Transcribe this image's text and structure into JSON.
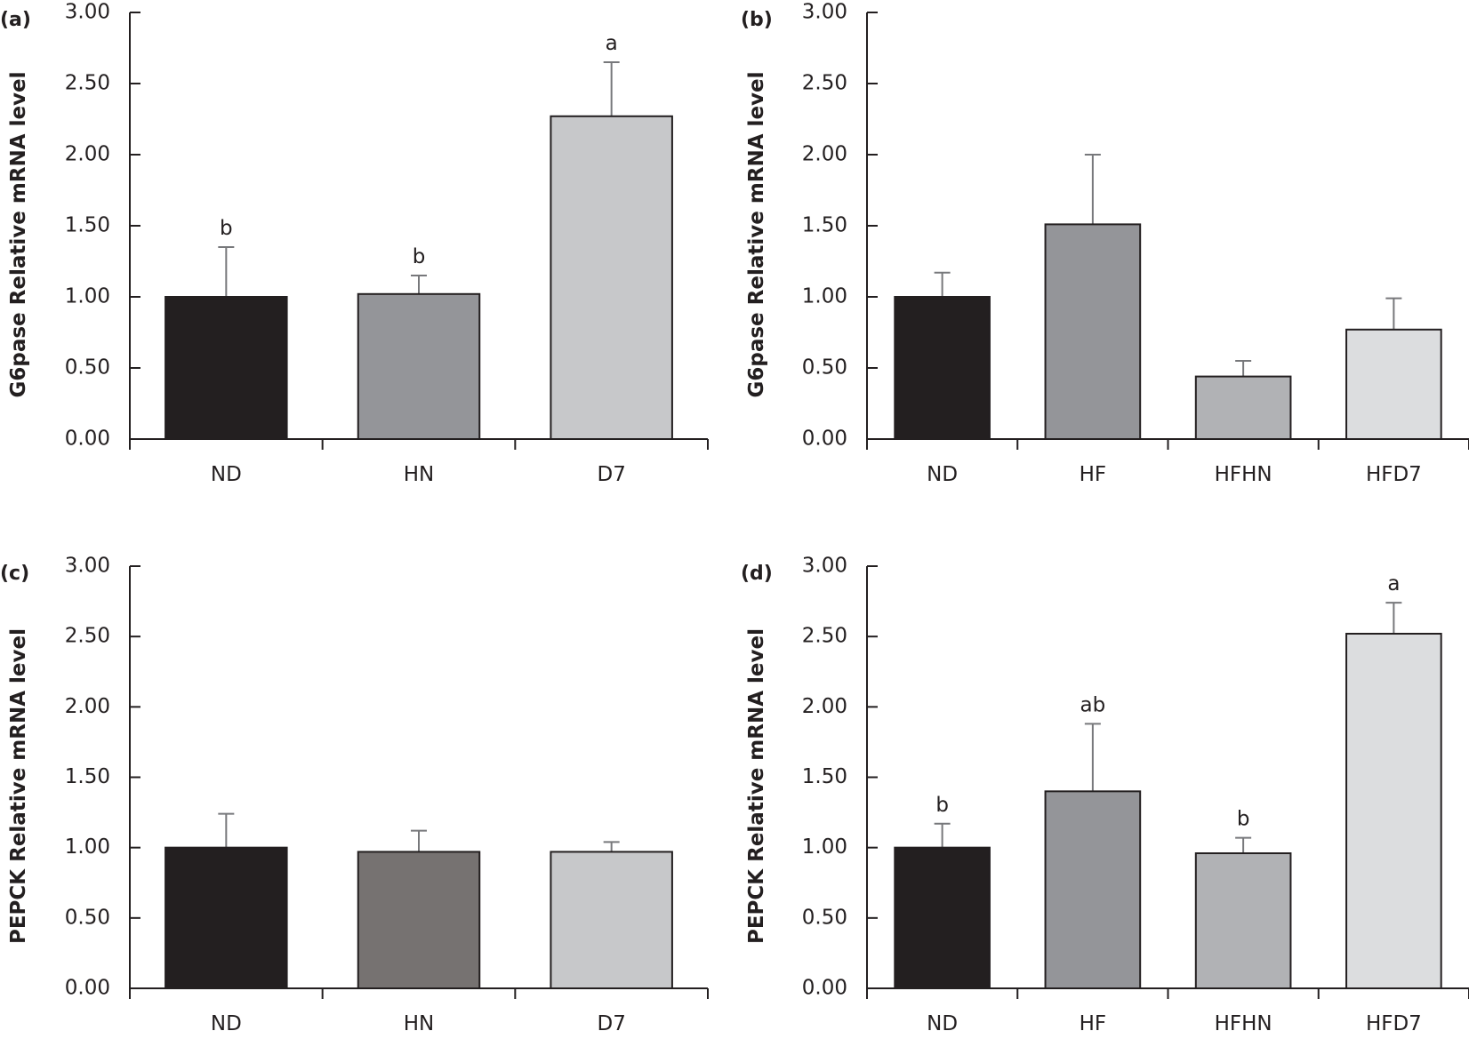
{
  "chart_data": [
    {
      "type": "bar",
      "panel": "(a)",
      "title": "",
      "xlabel": "",
      "ylabel": "G6pase Relative mRNA level",
      "ylim": [
        0,
        3
      ],
      "yticks": [
        "0.00",
        "0.50",
        "1.00",
        "1.50",
        "2.00",
        "2.50",
        "3.00"
      ],
      "grid": false,
      "categories": [
        "ND",
        "HN",
        "D7"
      ],
      "values": [
        1.0,
        1.02,
        2.27
      ],
      "error_upper": [
        1.35,
        1.15,
        2.65
      ],
      "significance": [
        "b",
        "b",
        "a"
      ],
      "colors": [
        "#231f20",
        "#949599",
        "#c7c8ca"
      ]
    },
    {
      "type": "bar",
      "panel": "(b)",
      "title": "",
      "xlabel": "",
      "ylabel": "G6pase Relative mRNA level",
      "ylim": [
        0,
        3
      ],
      "yticks": [
        "0.00",
        "0.50",
        "1.00",
        "1.50",
        "2.00",
        "2.50",
        "3.00"
      ],
      "grid": false,
      "categories": [
        "ND",
        "HF",
        "HFHN",
        "HFD7"
      ],
      "values": [
        1.0,
        1.51,
        0.44,
        0.77
      ],
      "error_upper": [
        1.17,
        2.0,
        0.55,
        0.99
      ],
      "significance": [
        "",
        "",
        "",
        ""
      ],
      "colors": [
        "#231f20",
        "#949599",
        "#b1b2b5",
        "#dcdddf"
      ]
    },
    {
      "type": "bar",
      "panel": "(c)",
      "title": "",
      "xlabel": "",
      "ylabel": "PEPCK Relative mRNA level",
      "ylim": [
        0,
        3
      ],
      "yticks": [
        "0.00",
        "0.50",
        "1.00",
        "1.50",
        "2.00",
        "2.50",
        "3.00"
      ],
      "grid": false,
      "categories": [
        "ND",
        "HN",
        "D7"
      ],
      "values": [
        1.0,
        0.97,
        0.97
      ],
      "error_upper": [
        1.24,
        1.12,
        1.04
      ],
      "significance": [
        "",
        "",
        ""
      ],
      "colors": [
        "#231f20",
        "#767271",
        "#c7c8ca"
      ]
    },
    {
      "type": "bar",
      "panel": "(d)",
      "title": "",
      "xlabel": "",
      "ylabel": "PEPCK Relative mRNA level",
      "ylim": [
        0,
        3
      ],
      "yticks": [
        "0.00",
        "0.50",
        "1.00",
        "1.50",
        "2.00",
        "2.50",
        "3.00"
      ],
      "grid": false,
      "categories": [
        "ND",
        "HF",
        "HFHN",
        "HFD7"
      ],
      "values": [
        1.0,
        1.4,
        0.96,
        2.52
      ],
      "error_upper": [
        1.17,
        1.88,
        1.07,
        2.74
      ],
      "significance": [
        "b",
        "ab",
        "b",
        "a"
      ],
      "colors": [
        "#231f20",
        "#949599",
        "#b1b2b5",
        "#dcdddf"
      ]
    }
  ]
}
